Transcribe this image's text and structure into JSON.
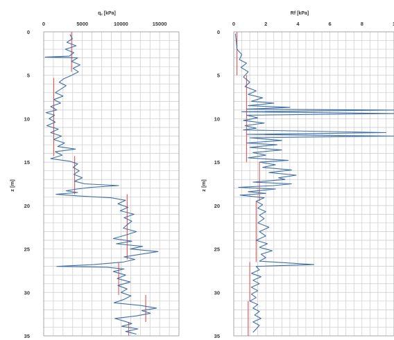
{
  "chart_data": [
    {
      "type": "line",
      "title": "q꜀ [kPa]",
      "xlabel": "",
      "ylabel": "z [m]",
      "xlim": [
        0,
        17500
      ],
      "ylim": [
        35,
        0
      ],
      "x_ticks": [
        "0",
        "5000",
        "10000",
        "15000"
      ],
      "y_ticks": [
        "0",
        "5",
        "10",
        "15",
        "20",
        "25",
        "30",
        "35"
      ],
      "grid": true,
      "series": [
        {
          "role": "measured",
          "color": "#3d6fa6",
          "points": [
            [
              3400,
              0.3
            ],
            [
              3700,
              0.8
            ],
            [
              3000,
              1.2
            ],
            [
              4200,
              1.6
            ],
            [
              2800,
              2.0
            ],
            [
              3900,
              2.4
            ],
            [
              3300,
              2.8
            ],
            [
              200,
              2.9
            ],
            [
              4400,
              3.0
            ],
            [
              3600,
              3.4
            ],
            [
              4700,
              3.8
            ],
            [
              3800,
              4.2
            ],
            [
              4500,
              4.6
            ],
            [
              3600,
              5.0
            ],
            [
              2600,
              5.4
            ],
            [
              2000,
              5.8
            ],
            [
              2900,
              6.2
            ],
            [
              2200,
              6.6
            ],
            [
              1500,
              7.0
            ],
            [
              2500,
              7.4
            ],
            [
              1300,
              7.8
            ],
            [
              2200,
              8.2
            ],
            [
              900,
              8.6
            ],
            [
              1700,
              9.0
            ],
            [
              300,
              9.3
            ],
            [
              1400,
              9.6
            ],
            [
              700,
              10.0
            ],
            [
              1500,
              10.4
            ],
            [
              400,
              10.8
            ],
            [
              1900,
              11.2
            ],
            [
              900,
              11.6
            ],
            [
              2300,
              12.0
            ],
            [
              1300,
              12.4
            ],
            [
              2700,
              12.8
            ],
            [
              1800,
              13.2
            ],
            [
              4100,
              13.5
            ],
            [
              1500,
              13.8
            ],
            [
              2400,
              14.2
            ],
            [
              900,
              14.6
            ],
            [
              3400,
              14.9
            ],
            [
              4400,
              15.2
            ],
            [
              3800,
              15.6
            ],
            [
              4600,
              16.0
            ],
            [
              3900,
              16.4
            ],
            [
              5000,
              16.8
            ],
            [
              4000,
              17.2
            ],
            [
              5300,
              17.5
            ],
            [
              9700,
              17.7
            ],
            [
              6200,
              17.9
            ],
            [
              4300,
              18.1
            ],
            [
              2900,
              18.3
            ],
            [
              4400,
              18.5
            ],
            [
              1600,
              18.7
            ],
            [
              4600,
              18.9
            ],
            [
              8700,
              19.1
            ],
            [
              10600,
              19.4
            ],
            [
              9600,
              19.8
            ],
            [
              10900,
              20.2
            ],
            [
              9900,
              20.6
            ],
            [
              11700,
              21.0
            ],
            [
              10400,
              21.4
            ],
            [
              11400,
              21.8
            ],
            [
              10800,
              22.2
            ],
            [
              10300,
              22.6
            ],
            [
              12000,
              23.0
            ],
            [
              10600,
              23.4
            ],
            [
              9000,
              23.8
            ],
            [
              11400,
              24.1
            ],
            [
              9400,
              24.4
            ],
            [
              12800,
              24.7
            ],
            [
              11200,
              25.0
            ],
            [
              14800,
              25.3
            ],
            [
              12600,
              25.6
            ],
            [
              10400,
              25.9
            ],
            [
              11800,
              26.2
            ],
            [
              10300,
              26.5
            ],
            [
              6500,
              26.8
            ],
            [
              1700,
              27.0
            ],
            [
              8200,
              27.1
            ],
            [
              10400,
              27.3
            ],
            [
              9000,
              27.6
            ],
            [
              10600,
              28.0
            ],
            [
              9500,
              28.4
            ],
            [
              11200,
              28.8
            ],
            [
              9600,
              29.2
            ],
            [
              10800,
              29.6
            ],
            [
              10000,
              30.0
            ],
            [
              11300,
              30.4
            ],
            [
              10400,
              30.8
            ],
            [
              9100,
              31.2
            ],
            [
              12500,
              31.5
            ],
            [
              14600,
              31.8
            ],
            [
              12700,
              32.1
            ],
            [
              13800,
              32.4
            ],
            [
              12000,
              32.7
            ],
            [
              9200,
              33.0
            ],
            [
              10400,
              33.3
            ],
            [
              11400,
              33.6
            ],
            [
              10100,
              33.9
            ],
            [
              12200,
              34.2
            ],
            [
              10600,
              34.5
            ],
            [
              12000,
              34.8
            ]
          ]
        },
        {
          "role": "layer-average",
          "color": "#e06060",
          "segments": [
            [
              [
                3600,
                0
              ],
              [
                3600,
                4.6
              ]
            ],
            [
              [
                1300,
                5.3
              ],
              [
                1300,
                14.3
              ]
            ],
            [
              [
                4000,
                14.3
              ],
              [
                4000,
                18.7
              ]
            ],
            [
              [
                10800,
                18.7
              ],
              [
                10800,
                26.2
              ]
            ],
            [
              [
                9700,
                26.6
              ],
              [
                9700,
                30.3
              ]
            ],
            [
              [
                13200,
                30.3
              ],
              [
                13200,
                33.4
              ]
            ],
            [
              [
                11000,
                33.4
              ],
              [
                11000,
                35
              ]
            ]
          ]
        }
      ]
    },
    {
      "type": "line",
      "title": "Rf [kPa]",
      "xlabel": "",
      "ylabel": "z [m]",
      "xlim": [
        0,
        10
      ],
      "ylim": [
        35,
        0
      ],
      "x_ticks": [
        "0",
        "2",
        "4",
        "6",
        "8",
        "1"
      ],
      "y_ticks": [
        "0",
        "5",
        "10",
        "15",
        "20",
        "25",
        "30",
        "35"
      ],
      "grid": true,
      "series": [
        {
          "role": "measured",
          "color": "#3d6fa6",
          "points": [
            [
              0.1,
              0.2
            ],
            [
              0.15,
              1.0
            ],
            [
              0.2,
              2.0
            ],
            [
              0.5,
              2.6
            ],
            [
              0.35,
              3.2
            ],
            [
              0.8,
              3.6
            ],
            [
              0.45,
              4.1
            ],
            [
              0.9,
              4.6
            ],
            [
              0.6,
              5.2
            ],
            [
              1.0,
              5.8
            ],
            [
              0.7,
              6.3
            ],
            [
              1.4,
              6.8
            ],
            [
              0.9,
              7.2
            ],
            [
              1.8,
              7.6
            ],
            [
              1.1,
              8.0
            ],
            [
              2.5,
              8.2
            ],
            [
              0.9,
              8.5
            ],
            [
              3.5,
              8.7
            ],
            [
              0.8,
              8.9
            ],
            [
              10.0,
              9.0
            ],
            [
              0.5,
              9.2
            ],
            [
              10.0,
              9.4
            ],
            [
              0.8,
              9.6
            ],
            [
              1.5,
              9.9
            ],
            [
              0.6,
              10.2
            ],
            [
              1.9,
              10.5
            ],
            [
              0.7,
              10.8
            ],
            [
              1.4,
              11.1
            ],
            [
              0.6,
              11.3
            ],
            [
              9.5,
              11.6
            ],
            [
              0.8,
              11.8
            ],
            [
              10.0,
              12.0
            ],
            [
              1.0,
              12.2
            ],
            [
              3.0,
              12.5
            ],
            [
              0.8,
              12.8
            ],
            [
              2.7,
              13.0
            ],
            [
              1.0,
              13.3
            ],
            [
              3.0,
              13.6
            ],
            [
              1.2,
              13.9
            ],
            [
              2.0,
              14.2
            ],
            [
              0.9,
              14.5
            ],
            [
              3.4,
              14.8
            ],
            [
              1.6,
              15.0
            ],
            [
              2.6,
              15.3
            ],
            [
              1.8,
              15.6
            ],
            [
              3.6,
              15.9
            ],
            [
              2.2,
              16.2
            ],
            [
              3.9,
              16.5
            ],
            [
              2.8,
              16.8
            ],
            [
              3.2,
              17.0
            ],
            [
              1.2,
              17.3
            ],
            [
              3.6,
              17.5
            ],
            [
              2.5,
              17.7
            ],
            [
              0.3,
              17.9
            ],
            [
              2.6,
              18.1
            ],
            [
              0.9,
              18.4
            ],
            [
              2.0,
              18.6
            ],
            [
              0.4,
              18.8
            ],
            [
              1.9,
              19.1
            ],
            [
              1.4,
              19.5
            ],
            [
              1.8,
              19.9
            ],
            [
              1.5,
              20.3
            ],
            [
              2.0,
              20.7
            ],
            [
              1.6,
              21.1
            ],
            [
              1.9,
              21.5
            ],
            [
              1.5,
              22.0
            ],
            [
              2.2,
              22.5
            ],
            [
              1.6,
              23.0
            ],
            [
              2.0,
              23.5
            ],
            [
              1.4,
              24.0
            ],
            [
              2.1,
              24.4
            ],
            [
              1.6,
              24.8
            ],
            [
              2.4,
              25.2
            ],
            [
              1.7,
              25.6
            ],
            [
              2.0,
              26.0
            ],
            [
              1.6,
              26.4
            ],
            [
              5.0,
              26.8
            ],
            [
              1.4,
              27.0
            ],
            [
              1.6,
              27.4
            ],
            [
              1.1,
              27.8
            ],
            [
              1.7,
              28.2
            ],
            [
              1.2,
              28.6
            ],
            [
              1.6,
              29.0
            ],
            [
              1.1,
              29.4
            ],
            [
              1.5,
              29.8
            ],
            [
              1.1,
              30.2
            ],
            [
              1.4,
              30.6
            ],
            [
              1.0,
              31.0
            ],
            [
              1.5,
              31.4
            ],
            [
              1.2,
              31.8
            ],
            [
              1.6,
              32.2
            ],
            [
              1.3,
              32.6
            ],
            [
              1.7,
              33.0
            ],
            [
              1.2,
              33.4
            ],
            [
              1.6,
              33.8
            ],
            [
              1.4,
              34.2
            ],
            [
              1.2,
              34.6
            ]
          ]
        },
        {
          "role": "layer-average",
          "color": "#e06060",
          "segments": [
            [
              [
                0.2,
                0
              ],
              [
                0.2,
                5.0
              ]
            ],
            [
              [
                0.8,
                5.0
              ],
              [
                0.8,
                15.0
              ]
            ],
            [
              [
                1.6,
                15.0
              ],
              [
                1.6,
                19.5
              ]
            ],
            [
              [
                1.4,
                19.5
              ],
              [
                1.4,
                26.5
              ]
            ],
            [
              [
                1.0,
                26.5
              ],
              [
                1.0,
                31.0
              ]
            ],
            [
              [
                0.9,
                31.0
              ],
              [
                0.9,
                35
              ]
            ]
          ]
        }
      ]
    }
  ]
}
